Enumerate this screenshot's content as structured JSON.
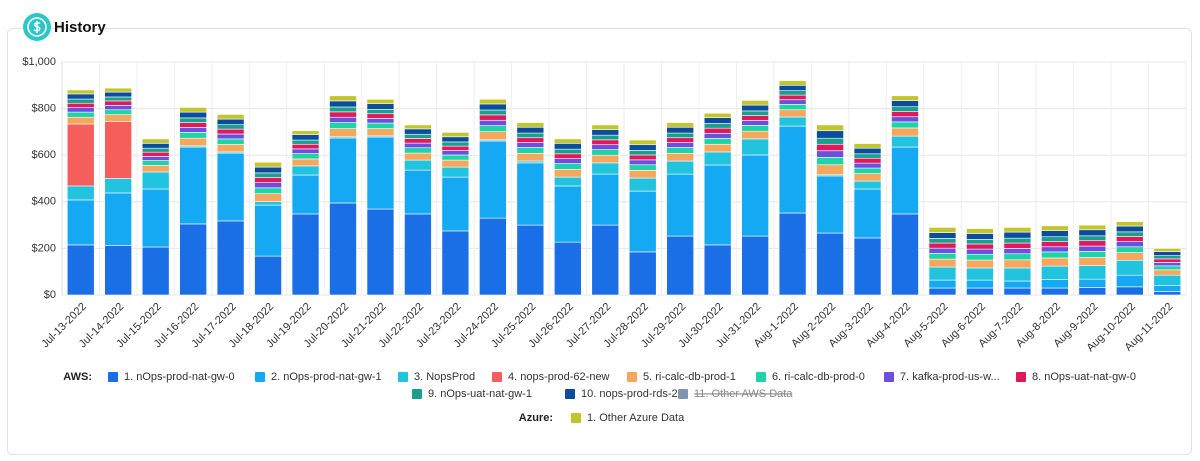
{
  "header": {
    "title": "History"
  },
  "chart_data": {
    "type": "stacked_bar",
    "categories": [
      "Jul-13-2022",
      "Jul-14-2022",
      "Jul-15-2022",
      "Jul-16-2022",
      "Jul-17-2022",
      "Jul-18-2022",
      "Jul-19-2022",
      "Jul-20-2022",
      "Jul-21-2022",
      "Jul-22-2022",
      "Jul-23-2022",
      "Jul-24-2022",
      "Jul-25-2022",
      "Jul-26-2022",
      "Jul-27-2022",
      "Jul-28-2022",
      "Jul-29-2022",
      "Jul-30-2022",
      "Jul-31-2022",
      "Aug-1-2022",
      "Aug-2-2022",
      "Aug-3-2022",
      "Aug-4-2022",
      "Aug-5-2022",
      "Aug-6-2022",
      "Aug-7-2022",
      "Aug-8-2022",
      "Aug-9-2022",
      "Aug-10-2022",
      "Aug-11-2022"
    ],
    "ylim": [
      0,
      1000
    ],
    "yticks": [
      {
        "value": 0,
        "label": "$0"
      },
      {
        "value": 200,
        "label": "$200"
      },
      {
        "value": 400,
        "label": "$400"
      },
      {
        "value": 600,
        "label": "$600"
      },
      {
        "value": 800,
        "label": "$800"
      },
      {
        "value": 1000,
        "label": "$1,000"
      }
    ],
    "grid": true,
    "legend_groups": [
      "AWS:",
      "Azure:"
    ],
    "series": [
      {
        "name": "1. nOps-prod-nat-gw-0",
        "color": "#1b6fe6",
        "group": 0,
        "values": [
          215,
          213,
          206,
          305,
          318,
          167,
          348,
          395,
          369,
          348,
          275,
          330,
          300,
          227,
          300,
          185,
          253,
          215,
          253,
          352,
          266,
          245,
          348,
          30,
          30,
          30,
          30,
          32,
          35,
          15
        ]
      },
      {
        "name": "2. nOps-prod-nat-gw-1",
        "color": "#16a9f3",
        "group": 0,
        "values": [
          193,
          225,
          249,
          330,
          291,
          219,
          167,
          279,
          309,
          188,
          231,
          331,
          267,
          241,
          219,
          261,
          266,
          343,
          348,
          373,
          245,
          210,
          287,
          34,
          34,
          30,
          36,
          36,
          50,
          25
        ]
      },
      {
        "name": "3. NopsProd",
        "color": "#22c3df",
        "group": 0,
        "values": [
          60,
          62,
          73,
          5,
          5,
          15,
          39,
          5,
          5,
          43,
          43,
          5,
          8,
          38,
          48,
          56,
          56,
          56,
          69,
          39,
          5,
          34,
          47,
          56,
          52,
          56,
          58,
          58,
          64,
          45
        ]
      },
      {
        "name": "4. nops-prod-62-new",
        "color": "#f65e5b",
        "group": 0,
        "values": [
          266,
          245,
          0,
          0,
          0,
          0,
          0,
          0,
          0,
          0,
          0,
          0,
          0,
          0,
          0,
          0,
          0,
          0,
          0,
          0,
          0,
          0,
          0,
          0,
          0,
          0,
          0,
          0,
          0,
          0
        ]
      },
      {
        "name": "5. ri-calc-db-prod-1",
        "color": "#f6a75e",
        "group": 0,
        "values": [
          29,
          29,
          28,
          33,
          32,
          34,
          30,
          35,
          31,
          30,
          30,
          35,
          33,
          33,
          33,
          33,
          33,
          33,
          33,
          31,
          43,
          32,
          35,
          34,
          34,
          35,
          35,
          35,
          33,
          23
        ]
      },
      {
        "name": "6. ri-calc-db-prod-0",
        "color": "#1ed3a6",
        "group": 0,
        "values": [
          22,
          21,
          21,
          25,
          24,
          25,
          23,
          26,
          24,
          23,
          22,
          26,
          25,
          25,
          24,
          24,
          25,
          25,
          25,
          23,
          32,
          24,
          26,
          25,
          25,
          26,
          26,
          26,
          25,
          17
        ]
      },
      {
        "name": "7. kafka-prod-us-w...",
        "color": "#6b4fe0",
        "group": 0,
        "values": [
          19,
          19,
          18,
          21,
          21,
          22,
          20,
          23,
          20,
          20,
          19,
          23,
          21,
          21,
          21,
          21,
          21,
          22,
          21,
          20,
          28,
          21,
          22,
          22,
          22,
          23,
          22,
          23,
          22,
          15
        ]
      },
      {
        "name": "8. nOps-uat-nat-gw-0",
        "color": "#e0195b",
        "group": 0,
        "values": [
          19,
          19,
          18,
          21,
          21,
          22,
          20,
          23,
          20,
          20,
          19,
          23,
          21,
          21,
          21,
          21,
          21,
          22,
          21,
          20,
          28,
          21,
          22,
          22,
          22,
          23,
          22,
          23,
          22,
          15
        ]
      },
      {
        "name": "9. nOps-uat-nat-gw-1",
        "color": "#1b9e8b",
        "group": 0,
        "values": [
          18,
          17,
          17,
          20,
          19,
          20,
          18,
          21,
          19,
          18,
          18,
          21,
          20,
          20,
          20,
          20,
          20,
          20,
          20,
          19,
          26,
          19,
          21,
          20,
          20,
          21,
          21,
          21,
          20,
          14
        ]
      },
      {
        "name": "10. nops-prod-rds-2",
        "color": "#0b4c9e",
        "group": 0,
        "values": [
          22,
          21,
          21,
          25,
          24,
          25,
          23,
          26,
          24,
          23,
          22,
          26,
          25,
          25,
          24,
          24,
          25,
          25,
          25,
          23,
          32,
          24,
          26,
          25,
          25,
          26,
          26,
          26,
          25,
          17
        ]
      },
      {
        "name": "11. Other AWS Data",
        "color": "#5b7a98",
        "group": 0,
        "hidden": true
      },
      {
        "name": "1. Other Azure Data",
        "color": "#c3c52c",
        "group": 1,
        "values": [
          17,
          17,
          19,
          20,
          20,
          21,
          17,
          22,
          19,
          17,
          19,
          20,
          20,
          19,
          20,
          20,
          20,
          19,
          20,
          20,
          25,
          20,
          21,
          22,
          21,
          20,
          21,
          20,
          19,
          14
        ]
      }
    ]
  }
}
